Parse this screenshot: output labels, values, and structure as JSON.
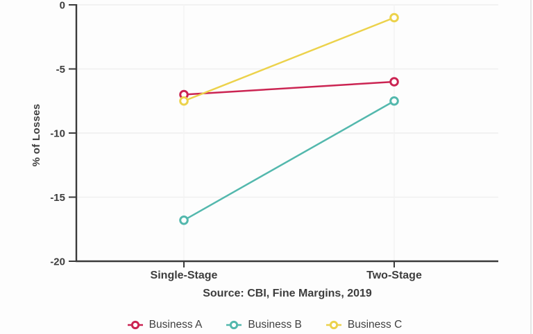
{
  "chart_data": {
    "type": "line",
    "title": "",
    "categories": [
      "Single-Stage",
      "Two-Stage"
    ],
    "series": [
      {
        "name": "Business A",
        "color": "#cb2452",
        "values": [
          -7,
          -6
        ]
      },
      {
        "name": "Business B",
        "color": "#53b8ad",
        "values": [
          -16.8,
          -7.5
        ]
      },
      {
        "name": "Business C",
        "color": "#ecd24b",
        "values": [
          -7.5,
          -1
        ]
      }
    ],
    "xlabel": "",
    "ylabel": "% of Losses",
    "ylim": [
      -20,
      0
    ],
    "yticks": [
      0,
      -5,
      -10,
      -15,
      -20
    ],
    "grid": true,
    "legend_position": "bottom",
    "source_note": "Source: CBI, Fine Margins, 2019"
  },
  "colors": {
    "axis": "#3a3a3a",
    "grid_horizontal": "#efefef",
    "grid_vertical": "#f3f3f3",
    "text": "#3d3d3d",
    "background": "#fdfdfd",
    "marker_fill": "#ffffff",
    "right_border": "#e6e6e6"
  }
}
